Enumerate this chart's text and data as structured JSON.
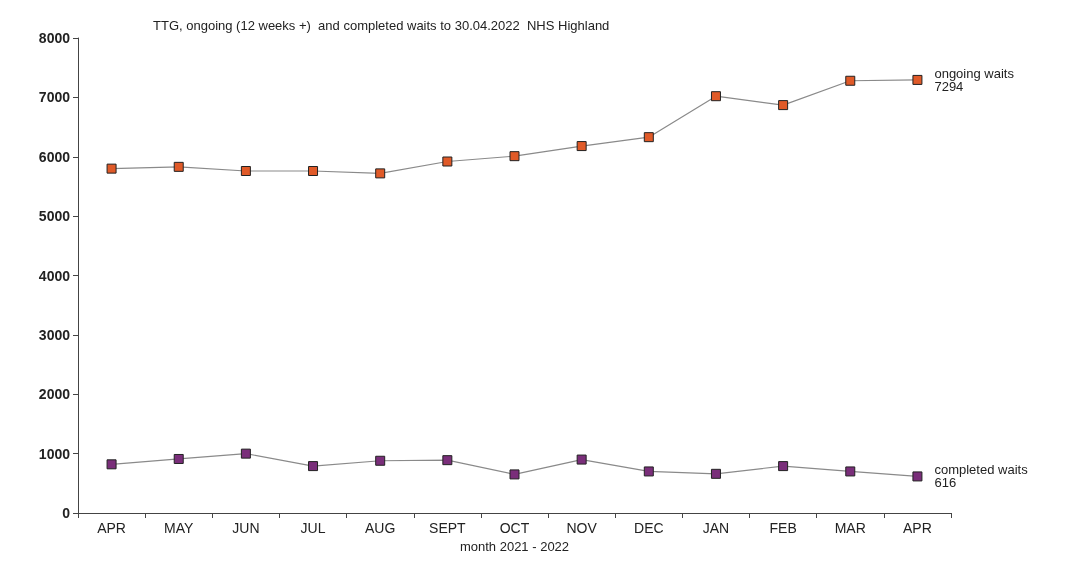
{
  "chart_data": {
    "type": "line",
    "title": "TTG, ongoing (12 weeks +)  and completed waits to 30.04.2022  NHS Highland",
    "xlabel": "month 2021 - 2022",
    "categories": [
      "APR",
      "MAY",
      "JUN",
      "JUL",
      "AUG",
      "SEPT",
      "OCT",
      "NOV",
      "DEC",
      "JAN",
      "FEB",
      "MAR",
      "APR"
    ],
    "series": [
      {
        "name": "ongoing waits",
        "color": "#e05a28",
        "values": [
          5800,
          5830,
          5760,
          5760,
          5720,
          5920,
          6010,
          6180,
          6330,
          7020,
          6870,
          7280,
          7294
        ],
        "value_labels": [
          null,
          null,
          null,
          null,
          null,
          null,
          null,
          null,
          null,
          null,
          null,
          null,
          "7294"
        ]
      },
      {
        "name": "completed waits",
        "color": "#7a2e7a",
        "values": [
          820,
          910,
          1000,
          790,
          880,
          890,
          650,
          900,
          700,
          660,
          790,
          700,
          616
        ],
        "value_labels": [
          null,
          null,
          null,
          null,
          null,
          null,
          null,
          null,
          null,
          null,
          null,
          null,
          "616"
        ]
      }
    ],
    "ylim": [
      0,
      8000
    ],
    "yticks": [
      0,
      1000,
      2000,
      3000,
      4000,
      5000,
      6000,
      7000,
      8000
    ],
    "grid": false,
    "legend": false,
    "marker": "square",
    "line_style": "solid"
  }
}
